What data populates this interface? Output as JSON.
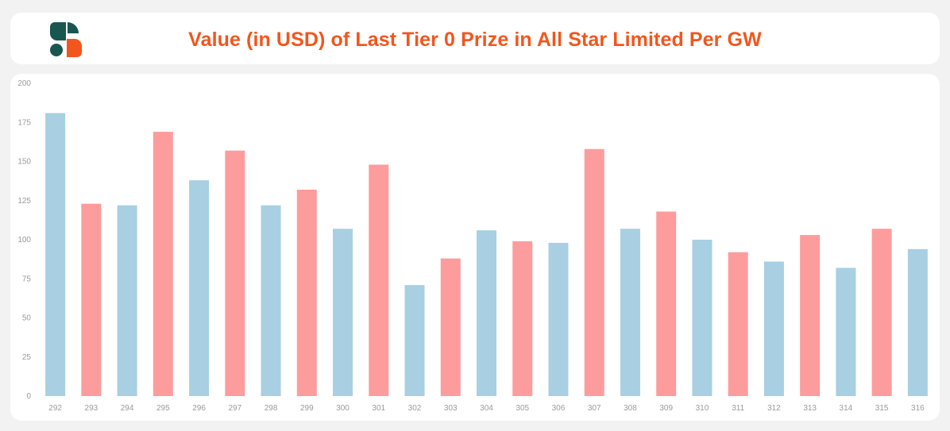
{
  "header": {
    "title": "Value (in USD) of Last Tier 0 Prize in All Star Limited Per GW",
    "logo_icon": "sorare-s-logo-icon",
    "title_color": "#f2561d"
  },
  "colors": {
    "blue": "#a8cfe2",
    "red": "#fd9c9c",
    "logo_green": "#17574f",
    "logo_orange": "#f2561d"
  },
  "chart_data": {
    "type": "bar",
    "title": "Value (in USD) of Last Tier 0 Prize in All Star Limited Per GW",
    "xlabel": "",
    "ylabel": "",
    "categories": [
      "292",
      "293",
      "294",
      "295",
      "296",
      "297",
      "298",
      "299",
      "300",
      "301",
      "302",
      "303",
      "304",
      "305",
      "306",
      "307",
      "308",
      "309",
      "310",
      "311",
      "312",
      "313",
      "314",
      "315",
      "316"
    ],
    "values": [
      181,
      123,
      122,
      169,
      138,
      157,
      122,
      132,
      107,
      148,
      71,
      88,
      106,
      99,
      98,
      158,
      107,
      118,
      100,
      92,
      86,
      103,
      82,
      107,
      94
    ],
    "bar_colors": [
      "blue",
      "red",
      "blue",
      "red",
      "blue",
      "red",
      "blue",
      "red",
      "blue",
      "red",
      "blue",
      "red",
      "blue",
      "red",
      "blue",
      "red",
      "blue",
      "red",
      "blue",
      "red",
      "blue",
      "red",
      "blue",
      "red",
      "blue"
    ],
    "ylim": [
      0,
      200
    ],
    "yticks": [
      0,
      25,
      50,
      75,
      100,
      125,
      150,
      175,
      200
    ],
    "grid": false,
    "legend": "none"
  }
}
